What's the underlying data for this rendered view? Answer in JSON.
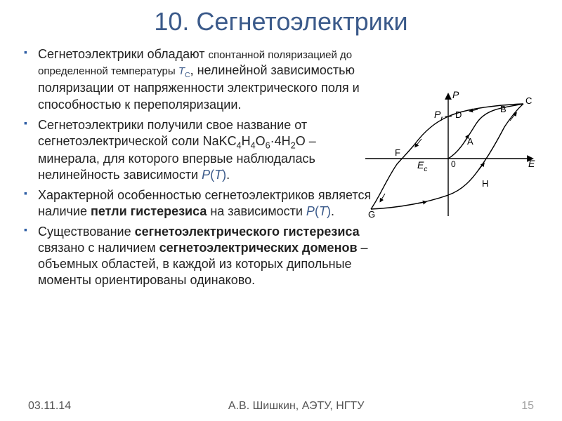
{
  "title": {
    "text": "10. Сегнетоэлектрики",
    "color": "#3b5a8a",
    "fontsize": 36
  },
  "accent_color": "#3b5a8a",
  "bullet_color": "#2f5fa5",
  "text_color": "#222222",
  "bullets": [
    {
      "pre": "Сегнетоэлектрики обладают ",
      "small": "спонтанной поляризацией до определенной температуры ",
      "tc_color": "#3b5a8a",
      "tc": "T",
      "tc_sub": "C",
      "post": ", нелинейной зависимостью поляризации от напряженности электрического поля и способностью к переполяризации."
    },
    {
      "pre": "Сегнетоэлектрики получили свое название от сегнетоэлектрической соли NaKC",
      "formula": {
        "a": "4",
        "b": "H",
        "c": "4",
        "d": "O",
        "e": "6",
        "mid": "·4H",
        "f": "2",
        "g": "O"
      },
      "post1": " – минерала, для которого впервые наблюдалась нелинейность зависимости ",
      "pt_color": "#3b5a8a",
      "pt_p": "P",
      "pt_paren1": "(",
      "pt_t": "T",
      "pt_paren2": ")",
      "post2": "."
    },
    {
      "pre": "Характерной особенностью сегнетоэлектриков является наличие ",
      "bold": "петли гистерезиса",
      "post1": " на зависимости ",
      "pt_color": "#3b5a8a",
      "pt_p": "P",
      "pt_paren1": "(",
      "pt_t": "T",
      "pt_paren2": ")",
      "post2": "."
    },
    {
      "pre": "Существование ",
      "bold1": "сегнетоэлектрического гистерезиса",
      "mid": " связано с наличием ",
      "bold2": "сегнетоэлектрических доменов",
      "post": " – объемных областей, в каждой из которых дипольные моменты ориентированы одинаково."
    }
  ],
  "footer": {
    "date": "03.11.14",
    "author": "А.В. Шишкин, АЭТУ, НГТУ",
    "page": "15",
    "page_color": "#a0a0a0"
  },
  "figure": {
    "axis_labels": {
      "P": "P",
      "E": "E",
      "Pr": "P",
      "Pr_sub": "r",
      "Ec": "E",
      "Ec_sub": "c",
      "zero": "0"
    },
    "point_labels": {
      "A": "A",
      "B": "B",
      "C": "C",
      "D": "D",
      "F": "F",
      "G": "G",
      "H": "H"
    },
    "stroke": "#000000",
    "stroke_width": 1.4,
    "label_fontsize": 13,
    "italic_fontsize": 14
  }
}
